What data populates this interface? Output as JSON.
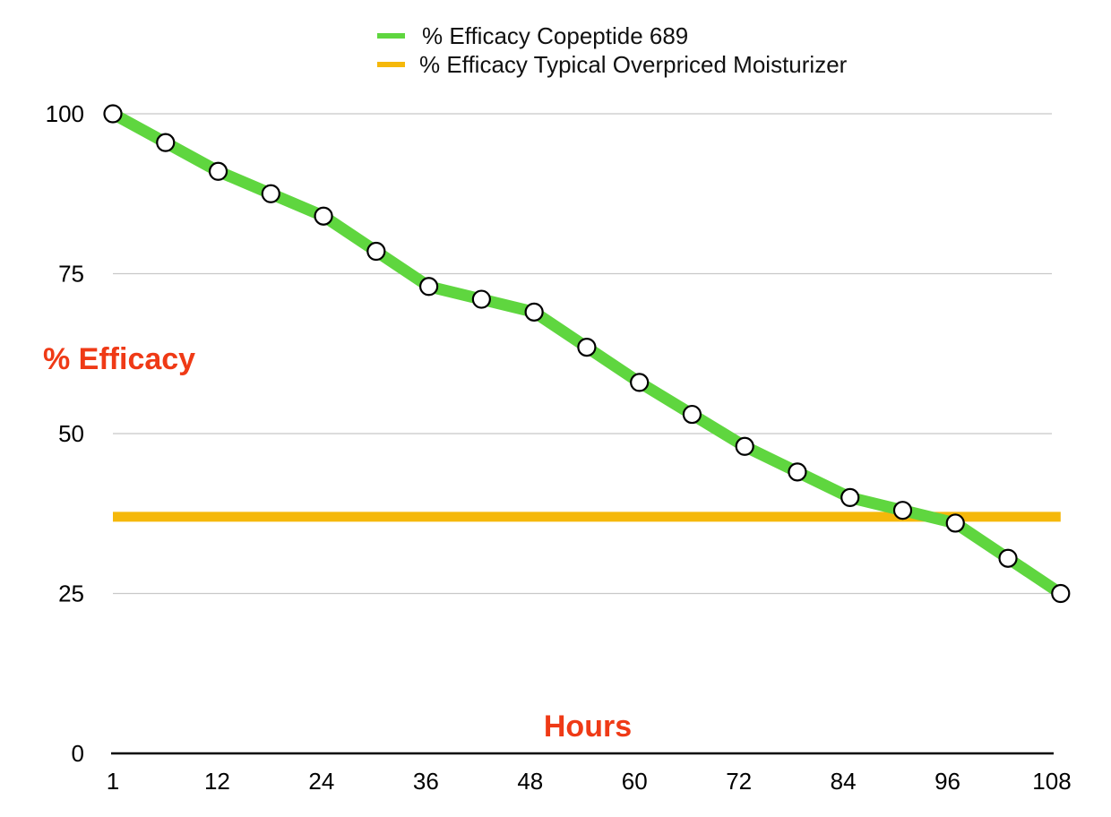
{
  "chart_data": {
    "type": "line",
    "xlabel": "Hours",
    "ylabel": "% Efficacy",
    "ylim": [
      0,
      100
    ],
    "y_ticks": [
      0,
      25,
      50,
      75,
      100
    ],
    "x_tick_labels": [
      "1",
      "12",
      "24",
      "36",
      "48",
      "60",
      "72",
      "84",
      "96",
      "108"
    ],
    "x_range": [
      1,
      108
    ],
    "grid": true,
    "legend_position": "top-center",
    "colors": {
      "copeptide": "#5fd63f",
      "moisturizer": "#f5b80b",
      "axis_title": "#ef3a16",
      "grid": "#c8c8c8",
      "axis": "#000000"
    },
    "series": [
      {
        "name": "% Efficacy Copeptide 689",
        "x": [
          1,
          7,
          13,
          19,
          25,
          31,
          37,
          43,
          49,
          55,
          61,
          67,
          73,
          79,
          85,
          91,
          97,
          103,
          109
        ],
        "values": [
          100,
          95.5,
          91,
          87.5,
          84,
          78.5,
          73,
          71,
          69,
          63.5,
          58,
          53,
          48,
          44,
          40,
          38,
          36,
          30.5,
          25
        ]
      },
      {
        "name": "% Efficacy Typical Overpriced Moisturizer",
        "x": [
          1,
          109
        ],
        "values": [
          37,
          37
        ]
      }
    ]
  }
}
